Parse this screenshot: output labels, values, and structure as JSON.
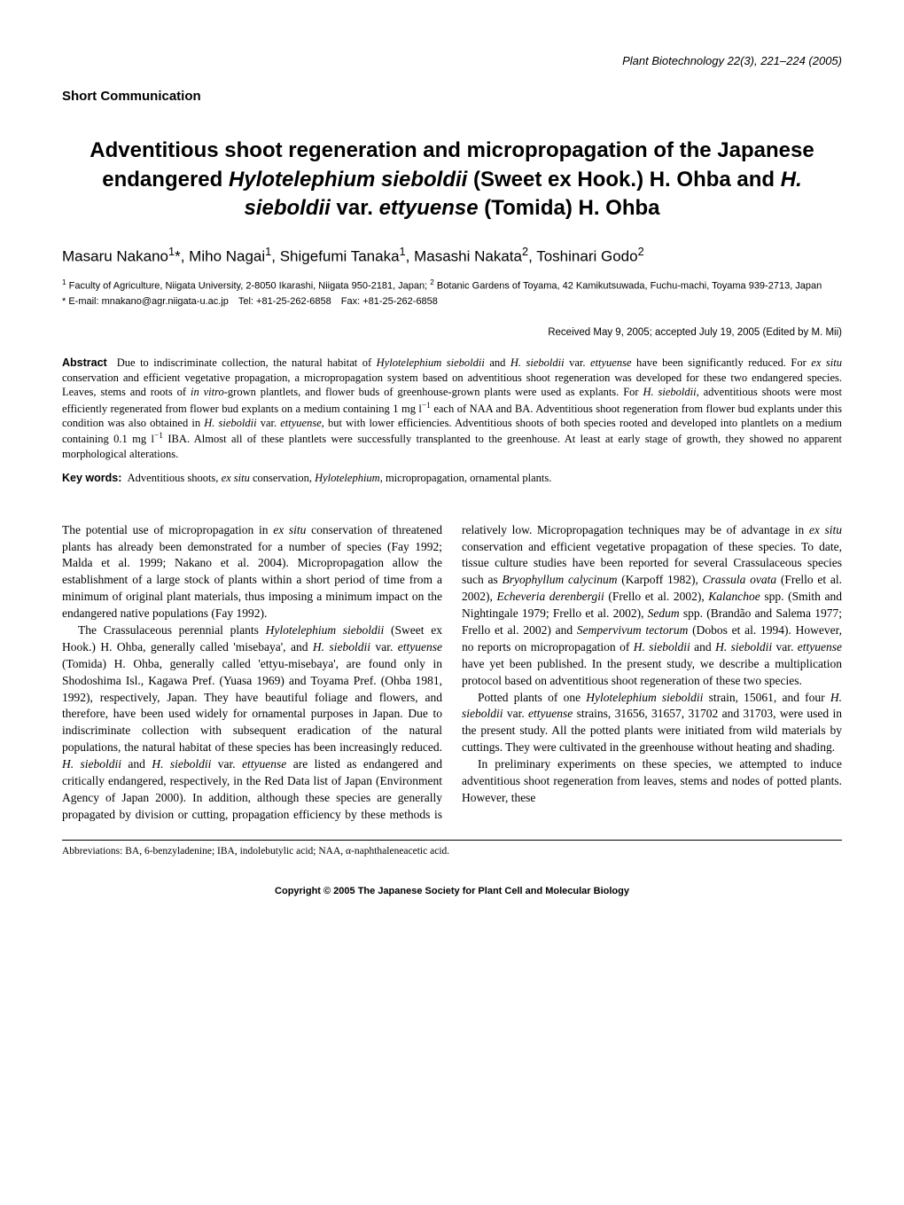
{
  "header": {
    "journal_info": "Plant Biotechnology 22(3), 221–224 (2005)"
  },
  "section_label": "Short Communication",
  "title_html": "Adventitious shoot regeneration and micropropagation of the Japanese endangered <span class='italic'>Hylotelephium sieboldii</span> (Sweet ex Hook.) H. Ohba and <span class='italic'>H. sieboldii</span> var. <span class='italic'>ettyuense</span> (Tomida) H. Ohba",
  "authors_html": "Masaru Nakano<sup>1</sup>*, Miho Nagai<sup>1</sup>, Shigefumi Tanaka<sup>1</sup>, Masashi Nakata<sup>2</sup>, Toshinari Godo<sup>2</sup>",
  "affiliations_html": "<sup>1</sup> Faculty of Agriculture, Niigata University, 2-8050 Ikarashi, Niigata 950-2181, Japan; <sup>2</sup> Botanic Gardens of Toyama, 42 Kamikutsuwada, Fuchu-machi, Toyama 939-2713, Japan",
  "correspondence": "* E-mail: mnakano@agr.niigata-u.ac.jp Tel: +81-25-262-6858 Fax: +81-25-262-6858",
  "received": "Received May 9, 2005; accepted July 19, 2005 (Edited by M. Mii)",
  "abstract_label": "Abstract",
  "abstract_html": "Due to indiscriminate collection, the natural habitat of <i>Hylotelephium sieboldii</i> and <i>H. sieboldii</i> var. <i>ettyuense</i> have been significantly reduced. For <i>ex situ</i> conservation and efficient vegetative propagation, a micropropagation system based on adventitious shoot regeneration was developed for these two endangered species. Leaves, stems and roots of <i>in vitro</i>-grown plantlets, and flower buds of greenhouse-grown plants were used as explants. For <i>H. sieboldii</i>, adventitious shoots were most efficiently regenerated from flower bud explants on a medium containing 1 mg l<sup>−1</sup> each of NAA and BA. Adventitious shoot regeneration from flower bud explants under this condition was also obtained in <i>H. sieboldii</i> var. <i>ettyuense</i>, but with lower efficiencies. Adventitious shoots of both species rooted and developed into plantlets on a medium containing 0.1 mg l<sup>−1</sup> IBA. Almost all of these plantlets were successfully transplanted to the greenhouse. At least at early stage of growth, they showed no apparent morphological alterations.",
  "keywords_label": "Key words:",
  "keywords_html": "Adventitious shoots, <i>ex situ</i> conservation, <i>Hylotelephium</i>, micropropagation, ornamental plants.",
  "body_paragraphs_html": [
    "The potential use of micropropagation in <i>ex situ</i> conservation of threatened plants has already been demonstrated for a number of species (Fay 1992; Malda et al. 1999; Nakano et al. 2004). Micropropagation allow the establishment of a large stock of plants within a short period of time from a minimum of original plant materials, thus imposing a minimum impact on the endangered native populations (Fay 1992).",
    "The Crassulaceous perennial plants <i>Hylotelephium sieboldii</i> (Sweet ex Hook.) H. Ohba, generally called 'misebaya', and <i>H. sieboldii</i> var. <i>ettyuense</i> (Tomida) H. Ohba, generally called 'ettyu-misebaya', are found only in Shodoshima Isl., Kagawa Pref. (Yuasa 1969) and Toyama Pref. (Ohba 1981, 1992), respectively, Japan. They have beautiful foliage and flowers, and therefore, have been used widely for ornamental purposes in Japan. Due to indiscriminate collection with subsequent eradication of the natural populations, the natural habitat of these species has been increasingly reduced. <i>H. sieboldii</i> and <i>H. sieboldii</i> var. <i>ettyuense</i> are listed as endangered and critically endangered, respectively, in the Red Data list of Japan (Environment Agency of Japan 2000). In addition, although these species are generally propagated by division or cutting, propagation efficiency by these methods is relatively low. Micropropagation techniques may be of advantage in <i>ex situ</i> conservation and efficient vegetative propagation of these species. To date, tissue culture studies have been reported for several Crassulaceous species such as <i>Bryophyllum calycinum</i> (Karpoff 1982), <i>Crassula ovata</i> (Frello et al. 2002), <i>Echeveria derenbergii</i> (Frello et al. 2002), <i>Kalanchoe</i> spp. (Smith and Nightingale 1979; Frello et al. 2002), <i>Sedum</i> spp. (Brandão and Salema 1977; Frello et al. 2002) and <i>Sempervivum tectorum</i> (Dobos et al. 1994). However, no reports on micropropagation of <i>H. sieboldii</i> and <i>H. sieboldii</i> var. <i>ettyuense</i> have yet been published. In the present study, we describe a multiplication protocol based on adventitious shoot regeneration of these two species.",
    "Potted plants of one <i>Hylotelephium sieboldii</i> strain, 15061, and four <i>H. sieboldii</i> var. <i>ettyuense</i> strains, 31656, 31657, 31702 and 31703, were used in the present study. All the potted plants were initiated from wild materials by cuttings. They were cultivated in the greenhouse without heating and shading.",
    "In preliminary experiments on these species, we attempted to induce adventitious shoot regeneration from leaves, stems and nodes of potted plants. However, these"
  ],
  "abbreviations_html": "Abbreviations: BA, 6-benzyladenine; IBA, indolebutylic acid; NAA, α-naphthaleneacetic acid.",
  "copyright": "Copyright © 2005 The Japanese Society for Plant Cell and Molecular Biology"
}
